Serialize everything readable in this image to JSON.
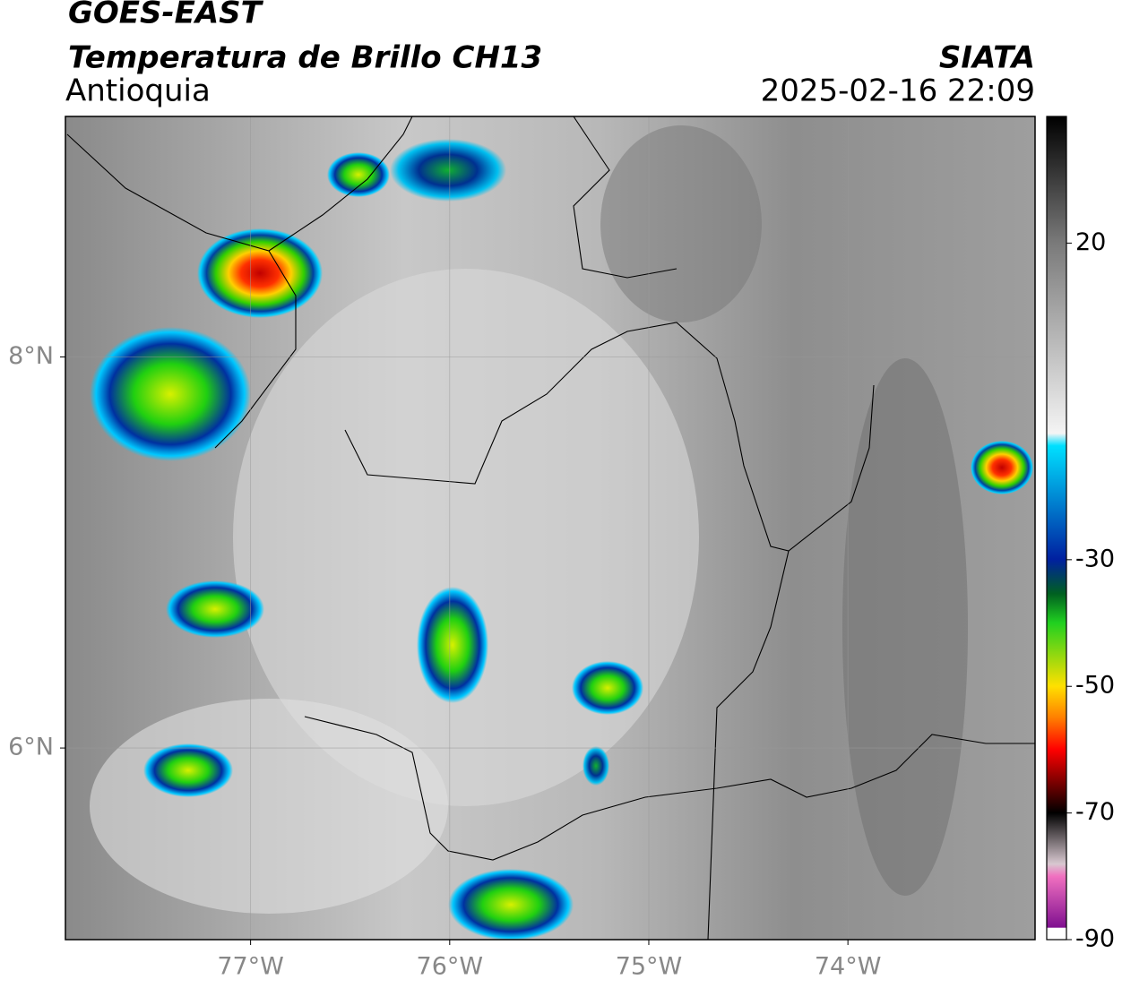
{
  "header": {
    "title": "GOES-EAST",
    "subtitle": "Temperatura de Brillo CH13",
    "region": "Antioquia",
    "source": "SIATA",
    "datetime": "2025-02-16 22:09"
  },
  "map": {
    "xlim": [
      -77.93,
      -73.06
    ],
    "ylim": [
      5.02,
      9.23
    ],
    "xticks": [
      {
        "value": -77,
        "label": "77°W"
      },
      {
        "value": -76,
        "label": "76°W"
      },
      {
        "value": -75,
        "label": "75°W"
      },
      {
        "value": -74,
        "label": "74°W"
      }
    ],
    "yticks": [
      {
        "value": 8,
        "label": "8°N"
      },
      {
        "value": 6,
        "label": "6°N"
      }
    ],
    "grid": true
  },
  "colorbar": {
    "clim": [
      -90,
      40
    ],
    "ticks": [
      20,
      -30,
      -50,
      -70,
      -90
    ]
  }
}
